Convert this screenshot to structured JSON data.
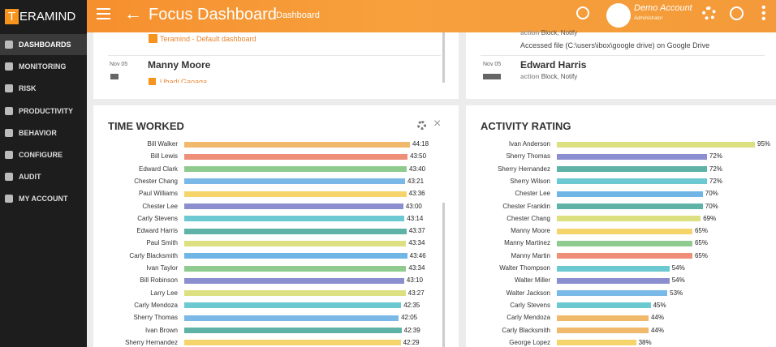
{
  "header": {
    "logo": {
      "initial": "T",
      "rest": "ERAMIND"
    },
    "title": "Focus Dashboard",
    "breadcrumb": "Dashboard",
    "user": {
      "name": "Demo Account",
      "role": "Administrator"
    }
  },
  "sidebar": {
    "items": [
      "DASHBOARDS",
      "MONITORING",
      "RISK",
      "PRODUCTIVITY",
      "BEHAVIOR",
      "CONFIGURE",
      "AUDIT",
      "MY ACCOUNT"
    ]
  },
  "top_left": {
    "link": "Teramind - Default dashboard",
    "date": "Nov 05",
    "name": "Manny Moore",
    "sub": "Ubadi Gaoaga"
  },
  "top_right": {
    "line1_key": "action",
    "line1_value": "Block, Notify",
    "line2": "Accessed file (C:\\users\\ibox\\google drive) on Google Drive",
    "date": "Nov 05",
    "name": "Edward Harris",
    "line3_key": "action",
    "line3_value": "Block, Notify"
  },
  "time_worked": {
    "title": "TIME WORKED",
    "unit": "minutes",
    "rows": [
      {
        "name": "Bill Walker",
        "value": 2658,
        "value_label": "44:18",
        "color": "#f0b96b"
      },
      {
        "name": "Bill Lewis",
        "value": 2630,
        "value_label": "43:50",
        "color": "#ef8f7a"
      },
      {
        "name": "Edward Clark",
        "value": 2620,
        "value_label": "43:40",
        "color": "#8fcb8f"
      },
      {
        "name": "Chester Chang",
        "value": 2601,
        "value_label": "43:21",
        "color": "#7ab8e8"
      },
      {
        "name": "Paul Williams",
        "value": 2616,
        "value_label": "43:36",
        "color": "#f5d46b"
      },
      {
        "name": "Chester Lee",
        "value": 2580,
        "value_label": "43:00",
        "color": "#8c8fcf"
      },
      {
        "name": "Carly Stevens",
        "value": 2594,
        "value_label": "43:14",
        "color": "#6cc8d1"
      },
      {
        "name": "Edward Harris",
        "value": 2617,
        "value_label": "43:37",
        "color": "#5fb3a6"
      },
      {
        "name": "Paul Smith",
        "value": 2614,
        "value_label": "43:34",
        "color": "#dde080"
      },
      {
        "name": "Carly Blacksmith",
        "value": 2626,
        "value_label": "43:46",
        "color": "#6fb6e6"
      },
      {
        "name": "Ivan Taylor",
        "value": 2614,
        "value_label": "43:34",
        "color": "#8fcb8f"
      },
      {
        "name": "Bill Robinson",
        "value": 2590,
        "value_label": "43:10",
        "color": "#8c8fcf"
      },
      {
        "name": "Larry Lee",
        "value": 2607,
        "value_label": "43:27",
        "color": "#dde080"
      },
      {
        "name": "Carly Mendoza",
        "value": 2555,
        "value_label": "42:35",
        "color": "#6cc8d1"
      },
      {
        "name": "Sherry Thomas",
        "value": 2525,
        "value_label": "42:05",
        "color": "#7ab8e8"
      },
      {
        "name": "Ivan Brown",
        "value": 2559,
        "value_label": "42:39",
        "color": "#5fb3a6"
      },
      {
        "name": "Sherry Hernandez",
        "value": 2549,
        "value_label": "42:29",
        "color": "#f5d46b"
      }
    ]
  },
  "activity_rating": {
    "title": "ACTIVITY RATING",
    "rows": [
      {
        "name": "Ivan Anderson",
        "value": 95,
        "value_label": "95%",
        "color": "#dde080"
      },
      {
        "name": "Sherry Thomas",
        "value": 72,
        "value_label": "72%",
        "color": "#8c8fcf"
      },
      {
        "name": "Sherry Hernandez",
        "value": 72,
        "value_label": "72%",
        "color": "#5fb3a6"
      },
      {
        "name": "Sherry Wilson",
        "value": 72,
        "value_label": "72%",
        "color": "#6cc8d1"
      },
      {
        "name": "Chester Lee",
        "value": 70,
        "value_label": "70%",
        "color": "#6fb6e6"
      },
      {
        "name": "Chester Franklin",
        "value": 70,
        "value_label": "70%",
        "color": "#5fb3a6"
      },
      {
        "name": "Chester Chang",
        "value": 69,
        "value_label": "69%",
        "color": "#dde080"
      },
      {
        "name": "Manny Moore",
        "value": 65,
        "value_label": "65%",
        "color": "#f5d46b"
      },
      {
        "name": "Manny Martinez",
        "value": 65,
        "value_label": "65%",
        "color": "#8fcb8f"
      },
      {
        "name": "Manny Martin",
        "value": 65,
        "value_label": "65%",
        "color": "#ef8f7a"
      },
      {
        "name": "Walter Thompson",
        "value": 54,
        "value_label": "54%",
        "color": "#6cc8d1"
      },
      {
        "name": "Walter Miller",
        "value": 54,
        "value_label": "54%",
        "color": "#8c8fcf"
      },
      {
        "name": "Walter Jackson",
        "value": 53,
        "value_label": "53%",
        "color": "#7ab8e8"
      },
      {
        "name": "Carly Stevens",
        "value": 45,
        "value_label": "45%",
        "color": "#6cc8d1"
      },
      {
        "name": "Carly Mendoza",
        "value": 44,
        "value_label": "44%",
        "color": "#f0b96b"
      },
      {
        "name": "Carly Blacksmith",
        "value": 44,
        "value_label": "44%",
        "color": "#f0b96b"
      },
      {
        "name": "George Lopez",
        "value": 38,
        "value_label": "38%",
        "color": "#f5d46b"
      }
    ]
  }
}
